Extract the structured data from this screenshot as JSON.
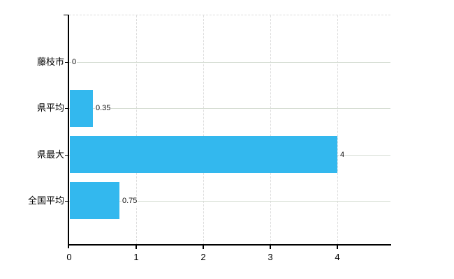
{
  "chart_data": {
    "type": "bar",
    "orientation": "horizontal",
    "title": "",
    "xlabel": "",
    "ylabel": "",
    "categories": [
      "藤枝市",
      "県平均",
      "県最大",
      "全国平均"
    ],
    "values": [
      0,
      0.35,
      4,
      0.75
    ],
    "value_labels": [
      "0",
      "0.35",
      "4",
      "0.75"
    ],
    "x_ticks": [
      0,
      1,
      2,
      3,
      4
    ],
    "x_tick_labels": [
      "0",
      "1",
      "2",
      "3",
      "4"
    ],
    "xlim": [
      0,
      4.79
    ],
    "grid": true,
    "legend": false,
    "colors": {
      "bar": "#33b8ee",
      "axis": "#000000",
      "h_gridline": "#d5dcd2",
      "v_gridline": "#dcdcdc",
      "background": "#ffffff",
      "text": "#000000"
    }
  }
}
